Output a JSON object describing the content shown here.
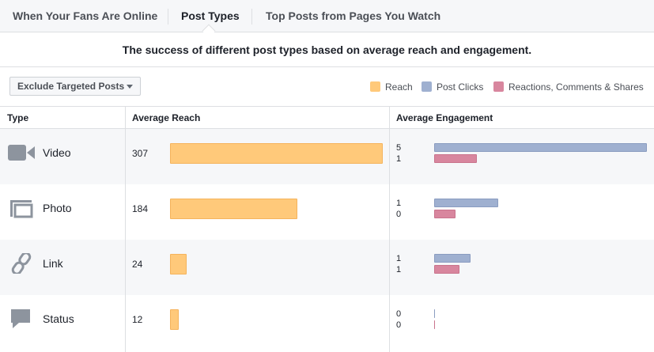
{
  "tabs": [
    {
      "label": "When Your Fans Are Online"
    },
    {
      "label": "Post Types"
    },
    {
      "label": "Top Posts from Pages You Watch"
    }
  ],
  "subtitle": "The success of different post types based on average reach and engagement.",
  "filter": {
    "label": "Exclude Targeted Posts"
  },
  "legend": [
    {
      "label": "Reach",
      "color": "#ffc97a"
    },
    {
      "label": "Post Clicks",
      "color": "#9fb0d0"
    },
    {
      "label": "Reactions, Comments & Shares",
      "color": "#d8869e"
    }
  ],
  "columns": {
    "type": "Type",
    "reach": "Average Reach",
    "engagement": "Average Engagement"
  },
  "rows": [
    {
      "type": "Video",
      "icon": "video-camera-icon",
      "reach": "307",
      "reach_value": 307,
      "clicks": "5",
      "clicks_fraction": 1.0,
      "reactions": "1",
      "reactions_fraction": 0.2
    },
    {
      "type": "Photo",
      "icon": "photo-icon",
      "reach": "184",
      "reach_value": 184,
      "clicks": "1",
      "clicks_fraction": 0.3,
      "reactions": "0",
      "reactions_fraction": 0.1
    },
    {
      "type": "Link",
      "icon": "link-icon",
      "reach": "24",
      "reach_value": 24,
      "clicks": "1",
      "clicks_fraction": 0.17,
      "reactions": "1",
      "reactions_fraction": 0.12
    },
    {
      "type": "Status",
      "icon": "speech-bubble-icon",
      "reach": "12",
      "reach_value": 12,
      "clicks": "0",
      "clicks_fraction": 0.0,
      "reactions": "0",
      "reactions_fraction": 0.0
    }
  ]
}
